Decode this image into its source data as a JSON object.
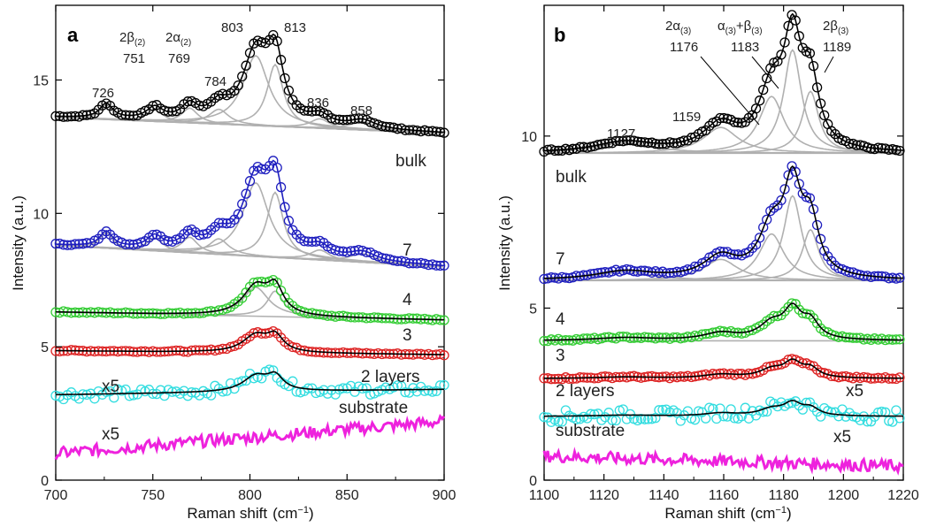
{
  "chart_data": [
    {
      "panel": "a",
      "type": "line",
      "xlabel": "Raman shift",
      "xlabel_unit": "(cm",
      "xlabel_unit_sup": "−1",
      "xlabel_unit_close": ")",
      "ylabel": "Intensity  (a.u.)",
      "xlim": [
        700,
        900
      ],
      "ylim": [
        0,
        17.8
      ],
      "xticks": [
        700,
        750,
        800,
        850,
        900
      ],
      "xtick_labels": [
        "700",
        "750",
        "800",
        "850",
        "900"
      ],
      "yticks": [
        0,
        5,
        10,
        15
      ],
      "ytick_labels": [
        "0",
        "5",
        "10",
        "15"
      ],
      "series": [
        {
          "name": "bulk",
          "color": "#000000",
          "baseline": 13.6,
          "slope_end": 13.0,
          "peak": 17.3,
          "scale": 1.0,
          "markers": true,
          "fit_color": "#000000"
        },
        {
          "name": "7",
          "color": "#1f1fbf",
          "baseline": 8.8,
          "slope_end": 8.0,
          "peak": 12.6,
          "scale": 1.0,
          "markers": true,
          "fit_color": "#1f1fbf"
        },
        {
          "name": "4",
          "color": "#33cc33",
          "baseline": 6.3,
          "slope_end": 6.0,
          "peak": 7.8,
          "scale": 1.0,
          "markers": true,
          "fit_color": "#000000"
        },
        {
          "name": "3",
          "color": "#dd2222",
          "baseline": 4.85,
          "slope_end": 4.7,
          "peak": 5.75,
          "scale": 1.0,
          "markers": true,
          "fit_color": "#000000"
        },
        {
          "name": "2 layers",
          "color": "#33dde0",
          "baseline": 3.2,
          "slope_end": 3.4,
          "peak": 4.2,
          "scale": 5,
          "markers": true,
          "fit_color": "#000000"
        },
        {
          "name": "substrate",
          "color": "#ee22dd",
          "baseline": 1.0,
          "slope_end": 2.2,
          "peak": 1.5,
          "scale": 5,
          "markers": false
        }
      ],
      "peaks": [
        {
          "label": "726",
          "x": 726
        },
        {
          "label": "2β(2)",
          "sub": "(2)",
          "base": "2β",
          "value": "751",
          "x": 751
        },
        {
          "label": "2α(2)",
          "sub": "(2)",
          "base": "2α",
          "value": "769",
          "x": 769
        },
        {
          "label": "784",
          "x": 784
        },
        {
          "label": "803",
          "x": 803
        },
        {
          "label": "813",
          "x": 813
        },
        {
          "label": "836",
          "x": 836
        },
        {
          "label": "858",
          "x": 858
        }
      ],
      "trace_labels": [
        "bulk",
        "7",
        "4",
        "3",
        "2 layers",
        "substrate"
      ],
      "scale_labels": [
        "x5",
        "x5"
      ]
    },
    {
      "panel": "b",
      "type": "line",
      "xlabel": "Raman shift",
      "xlabel_unit": "(cm",
      "xlabel_unit_sup": "−1",
      "xlabel_unit_close": ")",
      "ylabel": "Intensity  (a.u.)",
      "xlim": [
        1100,
        1220
      ],
      "ylim": [
        0,
        13.8
      ],
      "xticks": [
        1100,
        1120,
        1140,
        1160,
        1180,
        1200,
        1220
      ],
      "xtick_labels": [
        "1100",
        "1120",
        "1140",
        "1160",
        "1180",
        "1200",
        "1220"
      ],
      "yticks": [
        0,
        5,
        10
      ],
      "ytick_labels": [
        "0",
        "5",
        "10"
      ],
      "series": [
        {
          "name": "bulk",
          "color": "#000000",
          "baseline": 9.5,
          "peak": 13.4,
          "markers": true,
          "fit_color": "#000000"
        },
        {
          "name": "7",
          "color": "#1f1fbf",
          "baseline": 5.8,
          "peak": 9.0,
          "markers": true,
          "fit_color": "#000000"
        },
        {
          "name": "4",
          "color": "#33cc33",
          "baseline": 4.05,
          "peak": 5.1,
          "markers": true,
          "fit_color": "#000000"
        },
        {
          "name": "3",
          "color": "#dd2222",
          "baseline": 2.95,
          "peak": 3.5,
          "markers": true,
          "fit_color": "#000000"
        },
        {
          "name": "2 layers",
          "color": "#33dde0",
          "baseline": 1.85,
          "peak": 2.3,
          "scale": 5,
          "markers": true,
          "fit_color": "#000000"
        },
        {
          "name": "substrate",
          "color": "#ee22dd",
          "baseline": 0.7,
          "peak": 0.6,
          "scale": 5,
          "markers": false
        }
      ],
      "peaks": [
        {
          "label": "1127",
          "x": 1127
        },
        {
          "label": "1159",
          "x": 1159
        },
        {
          "label": "2α(3)",
          "base": "2α",
          "sub": "(3)",
          "value": "1176",
          "x": 1176
        },
        {
          "label": "α(3)+β(3)",
          "value": "1183",
          "x": 1183
        },
        {
          "label": "2β(3)",
          "base": "2β",
          "sub": "(3)",
          "value": "1189",
          "x": 1189
        }
      ],
      "trace_labels": [
        "bulk",
        "7",
        "4",
        "3",
        "2 layers",
        "substrate"
      ],
      "scale_labels": [
        "x5",
        "x5"
      ]
    }
  ],
  "panel_letters": [
    "a",
    "b"
  ]
}
